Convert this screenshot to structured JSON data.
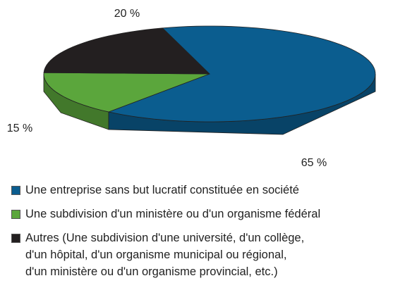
{
  "chart_data": {
    "type": "pie",
    "series": [
      {
        "name": "Une entreprise sans but lucratif constituée en société",
        "color": "#0b5d8f",
        "values": [
          65
        ],
        "value_labels": [
          "65 %"
        ]
      },
      {
        "name": "Une subdivision d'un ministère ou d'un organisme fédéral",
        "color": "#5ba63c",
        "values": [
          15
        ],
        "value_labels": [
          "15 %"
        ]
      },
      {
        "name": "Autres (Une subdivision d'une université, d'un collège,\nd'un hôpital, d'un organisme municipal ou régional,\nd'un ministère ou d'un organisme provincial, etc.)",
        "color": "#231f20",
        "values": [
          20
        ],
        "value_labels": [
          "20 %"
        ]
      }
    ]
  }
}
